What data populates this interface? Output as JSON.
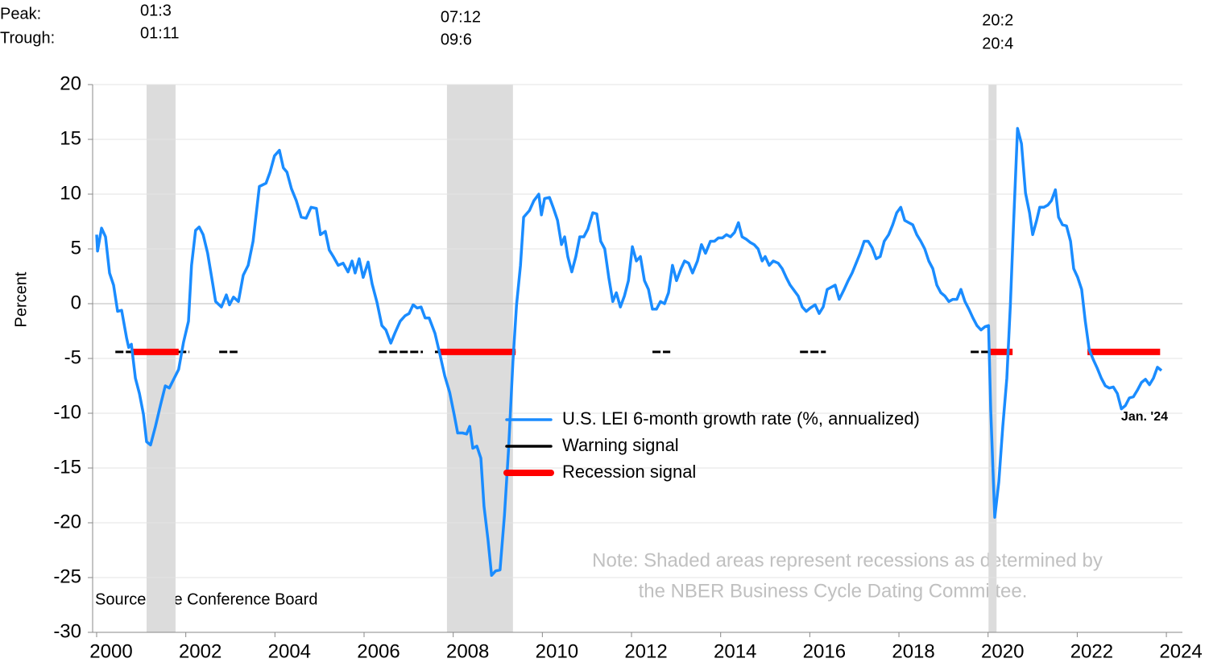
{
  "chart_data": {
    "type": "line",
    "y_label": "Percent",
    "xlim": [
      1999.91,
      2024.36
    ],
    "xticks": [
      2000,
      2002,
      2004,
      2006,
      2008,
      2010,
      2012,
      2014,
      2016,
      2018,
      2020,
      2022,
      2024
    ],
    "ylim": [
      -30,
      20
    ],
    "yticks": [
      -30,
      -25,
      -20,
      -15,
      -10,
      -5,
      0,
      5,
      10,
      15,
      20
    ],
    "grid": true,
    "legend": "center",
    "x": [
      2000.0,
      2000.02,
      2000.11,
      2000.2,
      2000.29,
      2000.38,
      2000.47,
      2000.56,
      2000.67,
      2000.72,
      2000.78,
      2000.87,
      2000.96,
      2001.05,
      2001.12,
      2001.21,
      2001.32,
      2001.43,
      2001.54,
      2001.63,
      2001.74,
      2001.84,
      2001.95,
      2002.06,
      2002.13,
      2002.22,
      2002.3,
      2002.39,
      2002.49,
      2002.58,
      2002.67,
      2002.8,
      2002.91,
      2002.98,
      2003.07,
      2003.18,
      2003.29,
      2003.4,
      2003.51,
      2003.65,
      2003.8,
      2003.89,
      2003.99,
      2004.1,
      2004.19,
      2004.27,
      2004.37,
      2004.48,
      2004.59,
      2004.7,
      2004.81,
      2004.93,
      2005.02,
      2005.13,
      2005.22,
      2005.31,
      2005.42,
      2005.53,
      2005.64,
      2005.73,
      2005.8,
      2005.89,
      2005.98,
      2006.09,
      2006.18,
      2006.29,
      2006.4,
      2006.49,
      2006.6,
      2006.69,
      2006.81,
      2006.92,
      2007.01,
      2007.1,
      2007.19,
      2007.28,
      2007.37,
      2007.46,
      2007.59,
      2007.7,
      2007.81,
      2007.92,
      2008.02,
      2008.1,
      2008.21,
      2008.3,
      2008.37,
      2008.44,
      2008.53,
      2008.62,
      2008.69,
      2008.78,
      2008.86,
      2008.95,
      2009.05,
      2009.15,
      2009.24,
      2009.34,
      2009.42,
      2009.51,
      2009.58,
      2009.71,
      2009.81,
      2009.92,
      2009.98,
      2010.05,
      2010.16,
      2010.25,
      2010.34,
      2010.43,
      2010.5,
      2010.57,
      2010.66,
      2010.75,
      2010.84,
      2010.93,
      2011.02,
      2011.13,
      2011.22,
      2011.31,
      2011.4,
      2011.49,
      2011.58,
      2011.66,
      2011.75,
      2011.84,
      2011.93,
      2012.02,
      2012.11,
      2012.2,
      2012.29,
      2012.38,
      2012.47,
      2012.56,
      2012.65,
      2012.74,
      2012.83,
      2012.92,
      2013.01,
      2013.11,
      2013.19,
      2013.28,
      2013.37,
      2013.48,
      2013.57,
      2013.66,
      2013.77,
      2013.86,
      2013.95,
      2014.04,
      2014.13,
      2014.22,
      2014.31,
      2014.4,
      2014.48,
      2014.57,
      2014.66,
      2014.75,
      2014.84,
      2014.93,
      2015.0,
      2015.09,
      2015.18,
      2015.29,
      2015.38,
      2015.47,
      2015.56,
      2015.65,
      2015.74,
      2015.83,
      2015.92,
      2016.01,
      2016.12,
      2016.21,
      2016.3,
      2016.39,
      2016.48,
      2016.57,
      2016.66,
      2016.77,
      2016.86,
      2016.95,
      2017.04,
      2017.13,
      2017.22,
      2017.31,
      2017.4,
      2017.49,
      2017.58,
      2017.67,
      2017.77,
      2017.86,
      2017.95,
      2018.04,
      2018.13,
      2018.22,
      2018.31,
      2018.4,
      2018.49,
      2018.58,
      2018.67,
      2018.76,
      2018.85,
      2018.94,
      2019.03,
      2019.12,
      2019.21,
      2019.3,
      2019.39,
      2019.48,
      2019.57,
      2019.66,
      2019.75,
      2019.84,
      2019.93,
      2020.01,
      2020.06,
      2020.15,
      2020.24,
      2020.33,
      2020.42,
      2020.5,
      2020.57,
      2020.66,
      2020.75,
      2020.84,
      2020.93,
      2021.0,
      2021.09,
      2021.16,
      2021.25,
      2021.34,
      2021.42,
      2021.51,
      2021.58,
      2021.67,
      2021.76,
      2021.85,
      2021.92,
      2022.01,
      2022.1,
      2022.18,
      2022.27,
      2022.36,
      2022.45,
      2022.54,
      2022.63,
      2022.72,
      2022.81,
      2022.9,
      2022.99,
      2023.08,
      2023.17,
      2023.26,
      2023.35,
      2023.44,
      2023.53,
      2023.62,
      2023.71,
      2023.8,
      2023.89
    ],
    "series": [
      {
        "name": "U.S. LEI 6-month growth rate (%, annualized)",
        "color": "#1a8cff",
        "values": [
          6.3,
          4.8,
          6.9,
          6.1,
          2.8,
          1.7,
          -0.7,
          -0.6,
          -3.1,
          -4.0,
          -3.7,
          -6.8,
          -8.2,
          -10.1,
          -12.6,
          -12.9,
          -11.2,
          -9.3,
          -7.5,
          -7.7,
          -6.8,
          -6.0,
          -3.5,
          -1.6,
          3.5,
          6.7,
          7.0,
          6.3,
          4.6,
          2.4,
          0.2,
          -0.3,
          0.8,
          -0.1,
          0.6,
          0.2,
          2.6,
          3.5,
          5.7,
          10.7,
          11.0,
          12.0,
          13.5,
          14.0,
          12.4,
          12.0,
          10.5,
          9.4,
          7.9,
          7.8,
          8.8,
          8.7,
          6.3,
          6.6,
          4.9,
          4.3,
          3.5,
          3.7,
          2.9,
          3.9,
          2.8,
          4.1,
          2.4,
          3.8,
          1.8,
          0.1,
          -2.0,
          -2.4,
          -3.6,
          -2.7,
          -1.6,
          -1.1,
          -0.9,
          -0.1,
          -0.4,
          -0.3,
          -1.3,
          -1.3,
          -2.7,
          -4.6,
          -6.6,
          -8.1,
          -10.1,
          -11.8,
          -11.8,
          -11.9,
          -11.2,
          -13.2,
          -13.0,
          -14.1,
          -18.5,
          -21.5,
          -24.8,
          -24.4,
          -24.3,
          -19.3,
          -13.4,
          -5.3,
          -0.1,
          3.5,
          7.9,
          8.5,
          9.4,
          10.0,
          8.1,
          9.6,
          9.7,
          8.7,
          7.6,
          5.4,
          6.1,
          4.3,
          2.9,
          4.3,
          6.1,
          6.1,
          6.8,
          8.3,
          8.2,
          5.7,
          5.0,
          2.4,
          0.2,
          1.0,
          -0.3,
          0.7,
          2.1,
          5.2,
          3.9,
          4.3,
          2.1,
          1.3,
          -0.5,
          -0.5,
          0.2,
          0.0,
          1.0,
          3.5,
          2.1,
          3.2,
          3.9,
          3.7,
          2.8,
          3.9,
          5.4,
          4.6,
          5.7,
          5.7,
          6.0,
          6.0,
          6.3,
          6.1,
          6.5,
          7.4,
          6.1,
          5.9,
          5.6,
          5.4,
          5.0,
          3.9,
          4.3,
          3.5,
          3.9,
          3.7,
          3.2,
          2.4,
          1.7,
          1.2,
          0.7,
          -0.3,
          -0.7,
          -0.4,
          -0.1,
          -0.9,
          -0.3,
          1.3,
          1.5,
          1.7,
          0.4,
          1.3,
          2.1,
          2.8,
          3.7,
          4.6,
          5.7,
          5.7,
          5.1,
          4.1,
          4.3,
          5.7,
          6.3,
          7.2,
          8.3,
          8.8,
          7.6,
          7.4,
          7.2,
          6.3,
          5.7,
          5.0,
          3.9,
          3.2,
          1.7,
          1.0,
          0.7,
          0.2,
          0.4,
          0.4,
          1.3,
          0.2,
          -0.5,
          -1.3,
          -2.0,
          -2.4,
          -2.1,
          -2.0,
          -9.7,
          -19.5,
          -16.3,
          -11.2,
          -6.8,
          -0.1,
          7.2,
          16.0,
          14.6,
          10.1,
          8.3,
          6.3,
          7.6,
          8.8,
          8.8,
          9.0,
          9.4,
          10.4,
          7.9,
          7.2,
          7.1,
          5.7,
          3.2,
          2.4,
          1.3,
          -1.6,
          -4.2,
          -5.1,
          -5.9,
          -6.8,
          -7.5,
          -7.7,
          -7.6,
          -8.2,
          -9.6,
          -9.3,
          -8.6,
          -8.5,
          -7.9,
          -7.2,
          -6.9,
          -7.4,
          -6.8,
          -5.8,
          -6.1
        ]
      }
    ],
    "signals": [
      {
        "name": "Warning signal",
        "color": "#000000",
        "level": -4.4,
        "intervals": [
          [
            2000.42,
            2002.08
          ],
          [
            2002.75,
            2003.16
          ],
          [
            2006.33,
            2007.32
          ],
          [
            2007.59,
            2009.4
          ],
          [
            2012.47,
            2012.87
          ],
          [
            2015.78,
            2016.36
          ],
          [
            2019.61,
            2020.55
          ]
        ]
      },
      {
        "name": "Recession signal",
        "color": "#ff0000",
        "level": -4.4,
        "intervals": [
          [
            2000.78,
            2001.84
          ],
          [
            2007.68,
            2009.4
          ],
          [
            2020.01,
            2020.55
          ],
          [
            2022.23,
            2023.86
          ]
        ]
      }
    ],
    "recession_header": {
      "peak": "Peak:",
      "trough": "Trough:"
    },
    "recessions": [
      {
        "start": 2001.12,
        "end": 2001.77,
        "peak": "01:3",
        "trough": "01:11"
      },
      {
        "start": 2007.86,
        "end": 2009.34,
        "peak": "07:12",
        "trough": "09:6"
      },
      {
        "start": 2020.01,
        "end": 2020.19,
        "peak": "20:2",
        "trough": "20:4"
      }
    ],
    "end_label": "Jan. '24",
    "source": "Source: The Conference Board",
    "note": [
      "Note: Shaded areas represent recessions as determined by",
      "the NBER Business Cycle Dating Committee."
    ]
  }
}
